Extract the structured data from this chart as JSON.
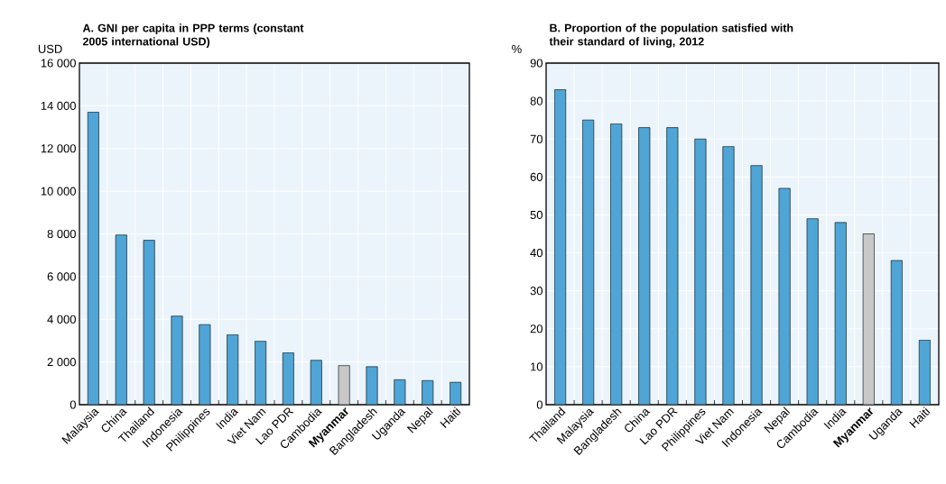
{
  "chart_data": [
    {
      "type": "bar",
      "title": "A. GNI per capita in PPP terms (constant 2005 international USD)",
      "ylabel": "USD",
      "categories": [
        "Malaysia",
        "China",
        "Thailand",
        "Indonesia",
        "Philippines",
        "India",
        "Viet Nam",
        "Lao PDR",
        "Cambodia",
        "**Myanmar**",
        "Bangladesh",
        "Uganda",
        "Nepal",
        "Haiti"
      ],
      "values": [
        13700,
        7950,
        7700,
        4150,
        3750,
        3280,
        2970,
        2430,
        2080,
        1830,
        1780,
        1170,
        1130,
        1050
      ],
      "colors": [
        "#4fa5d6",
        "#4fa5d6",
        "#4fa5d6",
        "#4fa5d6",
        "#4fa5d6",
        "#4fa5d6",
        "#4fa5d6",
        "#4fa5d6",
        "#4fa5d6",
        "#c8c8c8",
        "#4fa5d6",
        "#4fa5d6",
        "#4fa5d6",
        "#4fa5d6"
      ],
      "ylim": [
        0,
        16000
      ],
      "yticks": [
        {
          "value": 0,
          "label": "0"
        },
        {
          "value": 2000,
          "label": "2 000"
        },
        {
          "value": 4000,
          "label": "4 000"
        },
        {
          "value": 6000,
          "label": "6 000"
        },
        {
          "value": 8000,
          "label": "8 000"
        },
        {
          "value": 10000,
          "label": "10 000"
        },
        {
          "value": 12000,
          "label": "12 000"
        },
        {
          "value": 14000,
          "label": "14 000"
        },
        {
          "value": 16000,
          "label": "16 000"
        }
      ],
      "grid": true
    },
    {
      "type": "bar",
      "title": "B. Proportion of the population satisfied with their standard of living, 2012",
      "ylabel": "%",
      "categories": [
        "Thailand",
        "Malaysia",
        "Bangladesh",
        "China",
        "Lao PDR",
        "Philippines",
        "Viet Nam",
        "Indonesia",
        "Nepal",
        "Cambodia",
        "India",
        "**Myanmar**",
        "Uganda",
        "Haiti"
      ],
      "values": [
        83,
        75,
        74,
        73,
        73,
        70,
        68,
        63,
        57,
        49,
        48,
        45,
        38,
        17
      ],
      "colors": [
        "#4fa5d6",
        "#4fa5d6",
        "#4fa5d6",
        "#4fa5d6",
        "#4fa5d6",
        "#4fa5d6",
        "#4fa5d6",
        "#4fa5d6",
        "#4fa5d6",
        "#4fa5d6",
        "#4fa5d6",
        "#c8c8c8",
        "#4fa5d6",
        "#4fa5d6"
      ],
      "ylim": [
        0,
        90
      ],
      "yticks": [
        0,
        10,
        20,
        30,
        40,
        50,
        60,
        70,
        80,
        90
      ],
      "grid": true
    }
  ]
}
